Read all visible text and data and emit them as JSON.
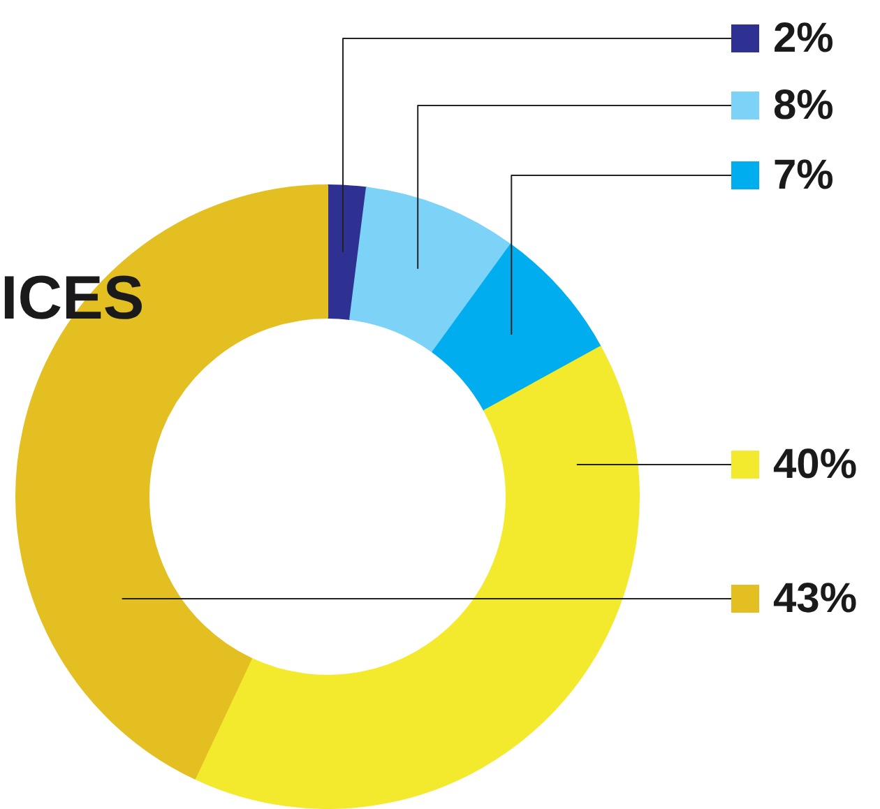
{
  "chart_data": {
    "type": "donut",
    "title": "ICES",
    "categories": [
      null,
      null,
      null,
      null,
      null
    ],
    "values": [
      2,
      8,
      7,
      40,
      43
    ],
    "colors": [
      "#2e3192",
      "#7dd3f7",
      "#00aeef",
      "#f3ea2e",
      "#e4bf22"
    ],
    "value_labels": [
      "2%",
      "8%",
      "7%",
      "40%",
      "43%"
    ]
  }
}
